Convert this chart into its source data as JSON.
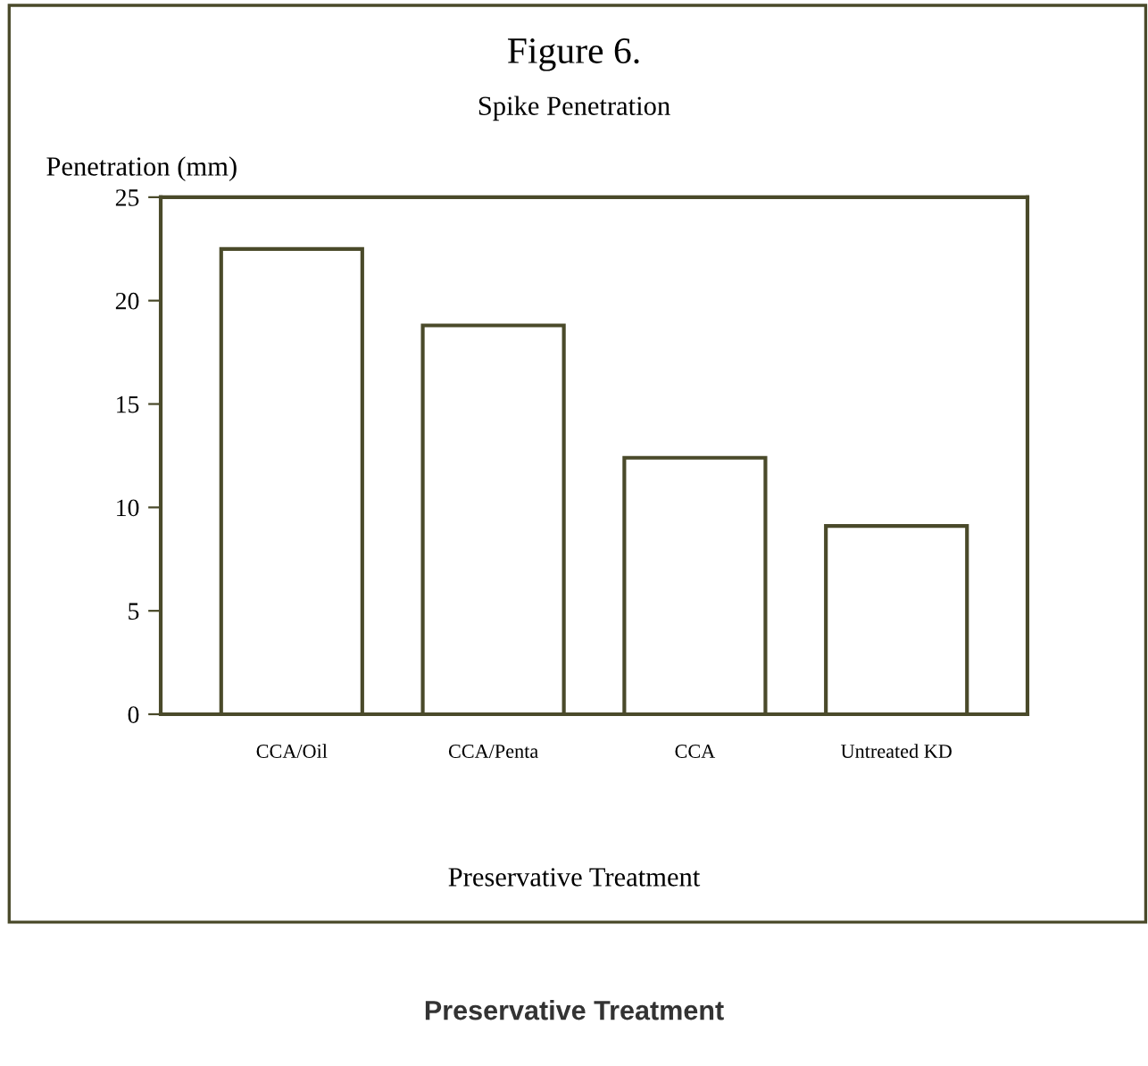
{
  "chart_data": {
    "type": "bar",
    "title": "Figure 6.",
    "subtitle": "Spike Penetration",
    "ylabel": "Penetration (mm)",
    "xlabel": "Preservative Treatment",
    "categories": [
      "CCA/Oil",
      "CCA/Penta",
      "CCA",
      "Untreated KD"
    ],
    "values": [
      22.5,
      18.8,
      12.4,
      9.1
    ],
    "color": "#ffffff",
    "ylim": [
      0,
      25
    ],
    "yticks": [
      0,
      5,
      10,
      15,
      20,
      25
    ],
    "grid": false,
    "annotations": [
      "Preservative Treatment"
    ]
  }
}
